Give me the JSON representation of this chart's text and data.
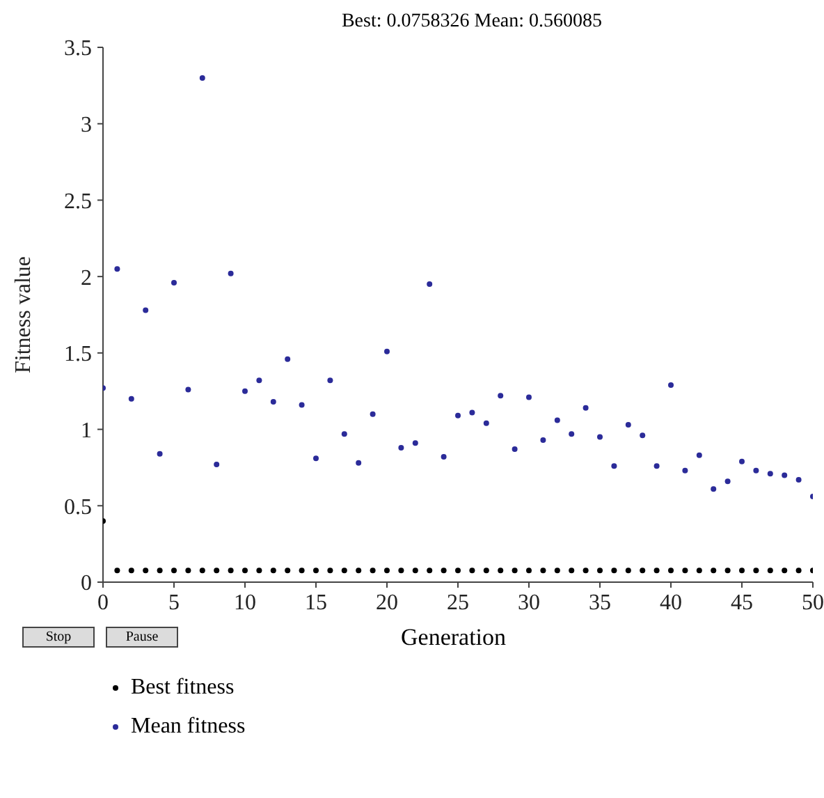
{
  "chart_data": {
    "type": "scatter",
    "title": "Best: 0.0758326 Mean: 0.560085",
    "xlabel": "Generation",
    "ylabel": "Fitness value",
    "x": [
      0,
      1,
      2,
      3,
      4,
      5,
      6,
      7,
      8,
      9,
      10,
      11,
      12,
      13,
      14,
      15,
      16,
      17,
      18,
      19,
      20,
      21,
      22,
      23,
      24,
      25,
      26,
      27,
      28,
      29,
      30,
      31,
      32,
      33,
      34,
      35,
      36,
      37,
      38,
      39,
      40,
      41,
      42,
      43,
      44,
      45,
      46,
      47,
      48,
      49,
      50
    ],
    "series": [
      {
        "name": "Best fitness",
        "color": "#000000",
        "values": [
          0.4,
          0.076,
          0.076,
          0.076,
          0.076,
          0.076,
          0.076,
          0.076,
          0.076,
          0.076,
          0.076,
          0.076,
          0.076,
          0.076,
          0.076,
          0.076,
          0.076,
          0.076,
          0.076,
          0.076,
          0.076,
          0.076,
          0.076,
          0.076,
          0.076,
          0.076,
          0.076,
          0.076,
          0.076,
          0.076,
          0.076,
          0.076,
          0.076,
          0.076,
          0.076,
          0.076,
          0.076,
          0.076,
          0.076,
          0.076,
          0.076,
          0.076,
          0.076,
          0.076,
          0.076,
          0.076,
          0.076,
          0.076,
          0.076,
          0.076,
          0.076
        ]
      },
      {
        "name": "Mean fitness",
        "color": "#2b2b99",
        "values": [
          1.27,
          2.05,
          1.2,
          1.78,
          0.84,
          1.96,
          1.26,
          3.3,
          0.77,
          2.02,
          1.25,
          1.32,
          1.18,
          1.46,
          1.16,
          0.81,
          1.32,
          0.97,
          0.78,
          1.1,
          1.51,
          0.88,
          0.91,
          1.95,
          0.82,
          1.09,
          1.11,
          1.04,
          1.22,
          0.87,
          1.21,
          0.93,
          1.06,
          0.97,
          1.14,
          0.95,
          0.76,
          1.03,
          0.96,
          0.76,
          1.29,
          0.73,
          0.83,
          0.61,
          0.66,
          0.79,
          0.73,
          0.71,
          0.7,
          0.67,
          0.56
        ]
      }
    ],
    "xlim": [
      0,
      50
    ],
    "xticks": [
      0,
      5,
      10,
      15,
      20,
      25,
      30,
      35,
      40,
      45,
      50
    ],
    "ylim": [
      0,
      3.5
    ],
    "yticks": [
      0,
      0.5,
      1,
      1.5,
      2,
      2.5,
      3,
      3.5
    ],
    "marker": "circle",
    "grid": false,
    "legend": "bottom",
    "annotations": [
      "Stop",
      "Pause"
    ]
  }
}
